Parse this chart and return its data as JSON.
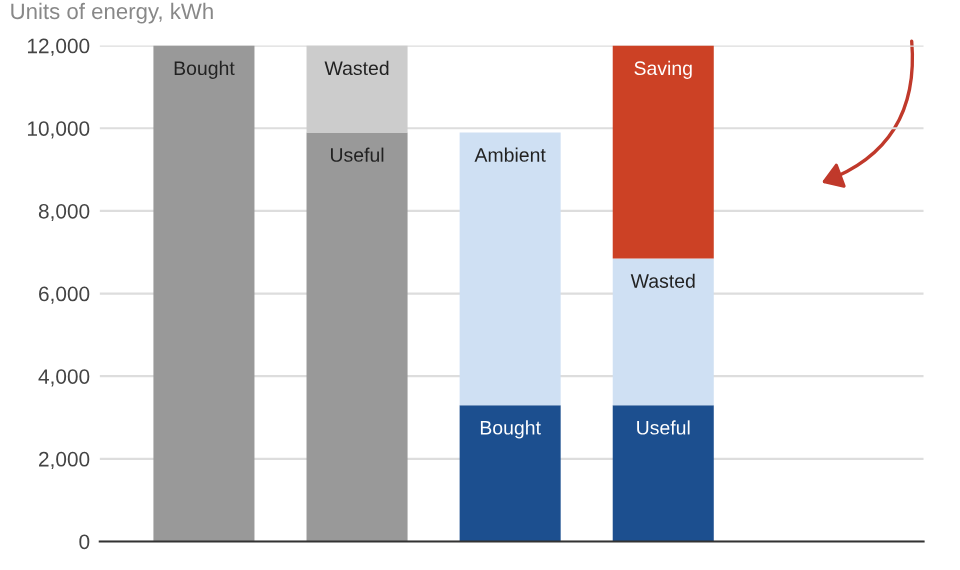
{
  "chart_data": {
    "type": "bar",
    "stacked": true,
    "title": "Units of energy, kWh",
    "categories": [
      null,
      null,
      null,
      null
    ],
    "series": [
      {
        "colors": [
          "#999999",
          "#999999",
          "#1c4f8f",
          "#1c4f8f"
        ],
        "values": [
          12000,
          9900,
          3300,
          3300
        ],
        "value_labels": [
          "Bought",
          "Useful",
          "Bought",
          "Useful"
        ]
      },
      {
        "colors": [
          "#cccccc",
          "#cccccc",
          "#cfe0f3",
          "#cfe0f3"
        ],
        "values": [
          null,
          2100,
          6600,
          3550
        ],
        "value_labels": [
          null,
          "Wasted",
          "Ambient",
          "Wasted"
        ]
      },
      {
        "colors": [
          "#cc4125",
          "#cc4125",
          "#cc4125",
          "#cc4125"
        ],
        "values": [
          null,
          null,
          null,
          5150
        ],
        "value_labels": [
          null,
          null,
          null,
          "Saving"
        ]
      }
    ],
    "ylim": [
      0,
      12000
    ],
    "yticks": [
      {
        "value": 0,
        "label": "0"
      },
      {
        "value": 2000,
        "label": "2,000"
      },
      {
        "value": 4000,
        "label": "4,000"
      },
      {
        "value": 6000,
        "label": "6,000"
      },
      {
        "value": 8000,
        "label": "8,000"
      },
      {
        "value": 10000,
        "label": "10,000"
      },
      {
        "value": 12000,
        "label": "12,000"
      }
    ],
    "grid": "y",
    "tick_labels": "y"
  }
}
